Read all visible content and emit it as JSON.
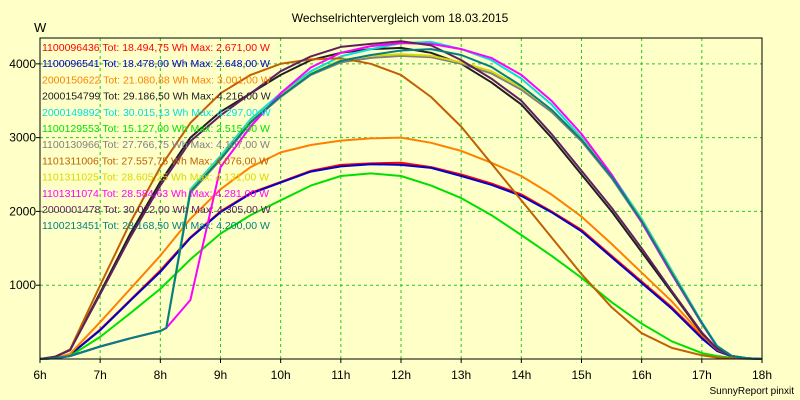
{
  "chart_data": {
    "type": "line",
    "title": "Wechselrichtervergleich vom 18.03.2015",
    "ylabel": "W",
    "footer": "SunnyReport pinxit",
    "x_ticks": [
      "6h",
      "7h",
      "8h",
      "9h",
      "10h",
      "11h",
      "12h",
      "13h",
      "14h",
      "15h",
      "16h",
      "17h",
      "18h"
    ],
    "y_ticks": [
      1000,
      2000,
      3000,
      4000
    ],
    "xlim": [
      6,
      18
    ],
    "ylim": [
      0,
      4350
    ],
    "grid": true,
    "legend_position": "top-left",
    "series": [
      {
        "name": "1100096436",
        "label": "Tot: 18.494,75 Wh Max: 2.671,00 W",
        "color": "#ff0000",
        "x": [
          6,
          6.25,
          6.5,
          7,
          7.5,
          8,
          8.5,
          9,
          9.5,
          10,
          10.5,
          11,
          11.5,
          12,
          12.5,
          13,
          13.5,
          14,
          14.5,
          15,
          15.5,
          16,
          16.5,
          17,
          17.25,
          17.5,
          17.75,
          18
        ],
        "y": [
          0,
          10,
          60,
          400,
          800,
          1200,
          1650,
          2000,
          2250,
          2400,
          2550,
          2630,
          2650,
          2660,
          2600,
          2500,
          2380,
          2230,
          2000,
          1750,
          1400,
          1050,
          700,
          300,
          120,
          40,
          10,
          0
        ]
      },
      {
        "name": "1100096541",
        "label": "Tot: 18.478,00 Wh Max: 2.648,00 W",
        "color": "#0000cc",
        "x": [
          6,
          6.25,
          6.5,
          7,
          7.5,
          8,
          8.5,
          9,
          9.5,
          10,
          10.5,
          11,
          11.5,
          12,
          12.5,
          13,
          13.5,
          14,
          14.5,
          15,
          15.5,
          16,
          16.5,
          17,
          17.25,
          17.5,
          17.75,
          18
        ],
        "y": [
          0,
          10,
          55,
          390,
          790,
          1180,
          1640,
          1990,
          2240,
          2390,
          2540,
          2610,
          2640,
          2630,
          2590,
          2480,
          2360,
          2210,
          1990,
          1730,
          1380,
          1030,
          680,
          280,
          110,
          35,
          8,
          0
        ]
      },
      {
        "name": "2000150622",
        "label": "Tot: 21.080,88 Wh Max: 3.001,00 W",
        "color": "#ff8000",
        "x": [
          6,
          6.25,
          6.5,
          7,
          7.5,
          8,
          8.5,
          9,
          9.5,
          10,
          10.5,
          11,
          11.5,
          12,
          12.5,
          13,
          13.5,
          14,
          14.5,
          15,
          15.5,
          16,
          16.5,
          17,
          17.25,
          17.5,
          17.75,
          18
        ],
        "y": [
          0,
          10,
          70,
          500,
          950,
          1400,
          1900,
          2300,
          2600,
          2800,
          2900,
          2960,
          2990,
          3000,
          2930,
          2820,
          2660,
          2480,
          2230,
          1930,
          1560,
          1170,
          780,
          330,
          130,
          40,
          10,
          0
        ]
      },
      {
        "name": "2000154799",
        "label": "Tot: 29.186,50 Wh Max: 4.216,00 W",
        "color": "#202020",
        "x": [
          6,
          6.25,
          6.5,
          7,
          7.5,
          8,
          8.5,
          9,
          9.5,
          10,
          10.5,
          11,
          11.5,
          12,
          12.5,
          13,
          13.5,
          14,
          14.5,
          15,
          15.5,
          16,
          16.5,
          17,
          17.25,
          17.5,
          17.75,
          18
        ],
        "y": [
          0,
          30,
          120,
          900,
          1700,
          2400,
          3000,
          3350,
          3600,
          3850,
          4050,
          4150,
          4200,
          4216,
          4150,
          4000,
          3750,
          3450,
          3000,
          2500,
          2000,
          1450,
          900,
          350,
          140,
          40,
          10,
          0
        ]
      },
      {
        "name": "2000149892",
        "label": "Tot: 30.015,13 Wh Max: 4.297,00 W",
        "color": "#00e0e0",
        "x": [
          6,
          6.25,
          6.5,
          7,
          7.5,
          8,
          8.1,
          8.5,
          9,
          9.5,
          10,
          10.5,
          11,
          11.5,
          12,
          12.5,
          13,
          13.5,
          14,
          14.5,
          15,
          15.5,
          16,
          16.5,
          17,
          17.25,
          17.5,
          17.75,
          18
        ],
        "y": [
          0,
          10,
          40,
          170,
          280,
          380,
          420,
          2300,
          2750,
          3250,
          3600,
          3900,
          4100,
          4200,
          4280,
          4297,
          4200,
          4050,
          3800,
          3450,
          3000,
          2500,
          1900,
          1200,
          500,
          180,
          40,
          10,
          0
        ]
      },
      {
        "name": "1100129553",
        "label": "Tot: 15.127,00 Wh Max: 2.515,00 W",
        "color": "#00e000",
        "x": [
          6,
          6.25,
          6.5,
          7,
          7.5,
          8,
          8.5,
          9,
          9.5,
          10,
          10.5,
          11,
          11.5,
          12,
          12.5,
          13,
          13.5,
          14,
          14.5,
          15,
          15.5,
          16,
          16.5,
          17,
          17.25,
          17.5,
          17.75,
          18
        ],
        "y": [
          0,
          10,
          40,
          300,
          620,
          950,
          1350,
          1700,
          1950,
          2150,
          2350,
          2480,
          2515,
          2480,
          2350,
          2180,
          1950,
          1680,
          1400,
          1100,
          770,
          480,
          240,
          80,
          40,
          15,
          5,
          0
        ]
      },
      {
        "name": "1100130966",
        "label": "Tot: 27.766,75 Wh Max: 4.107,00 W",
        "color": "#808080",
        "x": [
          6,
          6.25,
          6.5,
          7,
          7.5,
          8,
          8.1,
          8.5,
          9,
          9.5,
          10,
          10.5,
          11,
          11.5,
          12,
          12.5,
          13,
          13.5,
          14,
          14.5,
          15,
          15.5,
          16,
          16.5,
          17,
          17.25,
          17.5,
          17.75,
          18
        ],
        "y": [
          0,
          10,
          40,
          170,
          280,
          380,
          420,
          2250,
          2700,
          3200,
          3550,
          3850,
          4020,
          4080,
          4107,
          4090,
          4000,
          3870,
          3650,
          3350,
          2950,
          2450,
          1850,
          1150,
          480,
          170,
          40,
          10,
          0
        ]
      },
      {
        "name": "1101311006",
        "label": "Tot: 27.557,75 Wh Max: 4.076,00 W",
        "color": "#c06000",
        "x": [
          6,
          6.25,
          6.5,
          7,
          7.5,
          8,
          8.5,
          9,
          9.5,
          10,
          10.5,
          11,
          11.5,
          12,
          12.5,
          13,
          13.5,
          14,
          14.5,
          15,
          15.5,
          16,
          16.5,
          17,
          17.25,
          17.5,
          17.75,
          18
        ],
        "y": [
          0,
          30,
          130,
          1000,
          1850,
          2600,
          3200,
          3600,
          3850,
          4000,
          4060,
          4076,
          4000,
          3850,
          3550,
          3150,
          2650,
          2150,
          1650,
          1150,
          700,
          350,
          150,
          50,
          20,
          8,
          3,
          0
        ]
      },
      {
        "name": "1101311025",
        "label": "Tot: 28.605,25 Wh Max: 4.131,00 W",
        "color": "#d8d800",
        "x": [
          6,
          6.25,
          6.5,
          7,
          7.5,
          8,
          8.1,
          8.5,
          9,
          9.5,
          10,
          10.5,
          11,
          11.5,
          12,
          12.5,
          13,
          13.5,
          14,
          14.5,
          15,
          15.5,
          16,
          16.5,
          17,
          17.25,
          17.5,
          17.75,
          18
        ],
        "y": [
          0,
          10,
          40,
          170,
          280,
          380,
          420,
          2280,
          2720,
          3220,
          3570,
          3870,
          4050,
          4110,
          4131,
          4110,
          4020,
          3900,
          3680,
          3380,
          2980,
          2480,
          1880,
          1180,
          490,
          175,
          40,
          10,
          0
        ]
      },
      {
        "name": "1101311074",
        "label": "Tot: 28.584,63 Wh Max: 4.281,00 W",
        "color": "#ff00ff",
        "x": [
          6,
          6.25,
          6.5,
          7,
          7.5,
          8,
          8.1,
          8.5,
          9,
          9.5,
          10,
          10.5,
          11,
          11.5,
          12,
          12.5,
          13,
          13.5,
          14,
          14.5,
          15,
          15.5,
          16,
          16.5,
          17,
          17.25,
          17.5,
          17.75,
          18
        ],
        "y": [
          0,
          10,
          40,
          170,
          280,
          380,
          420,
          800,
          2600,
          3150,
          3600,
          3950,
          4150,
          4240,
          4281,
          4270,
          4200,
          4080,
          3850,
          3500,
          3050,
          2500,
          1850,
          1150,
          480,
          170,
          40,
          10,
          0
        ]
      },
      {
        "name": "2000001478",
        "label": "Tot: 30.022,00 Wh Max: 4.305,00 W",
        "color": "#602060",
        "x": [
          6,
          6.25,
          6.5,
          7,
          7.5,
          8,
          8.5,
          9,
          9.5,
          10,
          10.5,
          11,
          11.5,
          12,
          12.5,
          13,
          13.5,
          14,
          14.5,
          15,
          15.5,
          16,
          16.5,
          17,
          17.25,
          17.5,
          17.75,
          18
        ],
        "y": [
          0,
          30,
          120,
          880,
          1650,
          2350,
          2950,
          3300,
          3600,
          3900,
          4100,
          4230,
          4270,
          4305,
          4250,
          4050,
          3800,
          3500,
          3050,
          2550,
          2050,
          1500,
          920,
          360,
          140,
          40,
          10,
          0
        ]
      },
      {
        "name": "1100213451",
        "label": "Tot: 28.168,50 Wh Max: 4.200,00 W",
        "color": "#008080",
        "x": [
          6,
          6.25,
          6.5,
          7,
          7.5,
          8,
          8.1,
          8.5,
          9,
          9.5,
          10,
          10.5,
          11,
          11.5,
          12,
          12.5,
          13,
          13.5,
          14,
          14.5,
          15,
          15.5,
          16,
          16.5,
          17,
          17.25,
          17.5,
          17.75,
          18
        ],
        "y": [
          0,
          10,
          40,
          170,
          280,
          380,
          420,
          2270,
          2710,
          3210,
          3560,
          3860,
          4040,
          4120,
          4180,
          4200,
          4120,
          3960,
          3700,
          3380,
          2970,
          2470,
          1870,
          1170,
          490,
          175,
          40,
          10,
          0
        ]
      }
    ]
  }
}
